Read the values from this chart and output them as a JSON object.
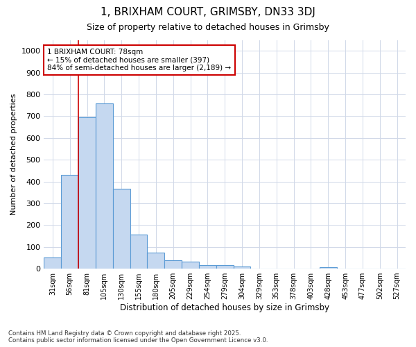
{
  "title": "1, BRIXHAM COURT, GRIMSBY, DN33 3DJ",
  "subtitle": "Size of property relative to detached houses in Grimsby",
  "xlabel": "Distribution of detached houses by size in Grimsby",
  "ylabel": "Number of detached properties",
  "categories": [
    "31sqm",
    "56sqm",
    "81sqm",
    "105sqm",
    "130sqm",
    "155sqm",
    "180sqm",
    "205sqm",
    "229sqm",
    "254sqm",
    "279sqm",
    "304sqm",
    "329sqm",
    "353sqm",
    "378sqm",
    "403sqm",
    "428sqm",
    "453sqm",
    "477sqm",
    "502sqm",
    "527sqm"
  ],
  "values": [
    52,
    430,
    695,
    758,
    368,
    157,
    75,
    40,
    32,
    17,
    17,
    10,
    0,
    0,
    0,
    0,
    8,
    0,
    0,
    0,
    0
  ],
  "bar_color": "#c5d8f0",
  "bar_edge_color": "#5b9bd5",
  "grid_color": "#d0d8e8",
  "vline_x": 1.5,
  "vline_color": "#cc0000",
  "annotation_text": "1 BRIXHAM COURT: 78sqm\n← 15% of detached houses are smaller (397)\n84% of semi-detached houses are larger (2,189) →",
  "annotation_box_edge": "#cc0000",
  "ylim": [
    0,
    1050
  ],
  "yticks": [
    0,
    100,
    200,
    300,
    400,
    500,
    600,
    700,
    800,
    900,
    1000
  ],
  "footnote": "Contains HM Land Registry data © Crown copyright and database right 2025.\nContains public sector information licensed under the Open Government Licence v3.0.",
  "bg_color": "#ffffff"
}
